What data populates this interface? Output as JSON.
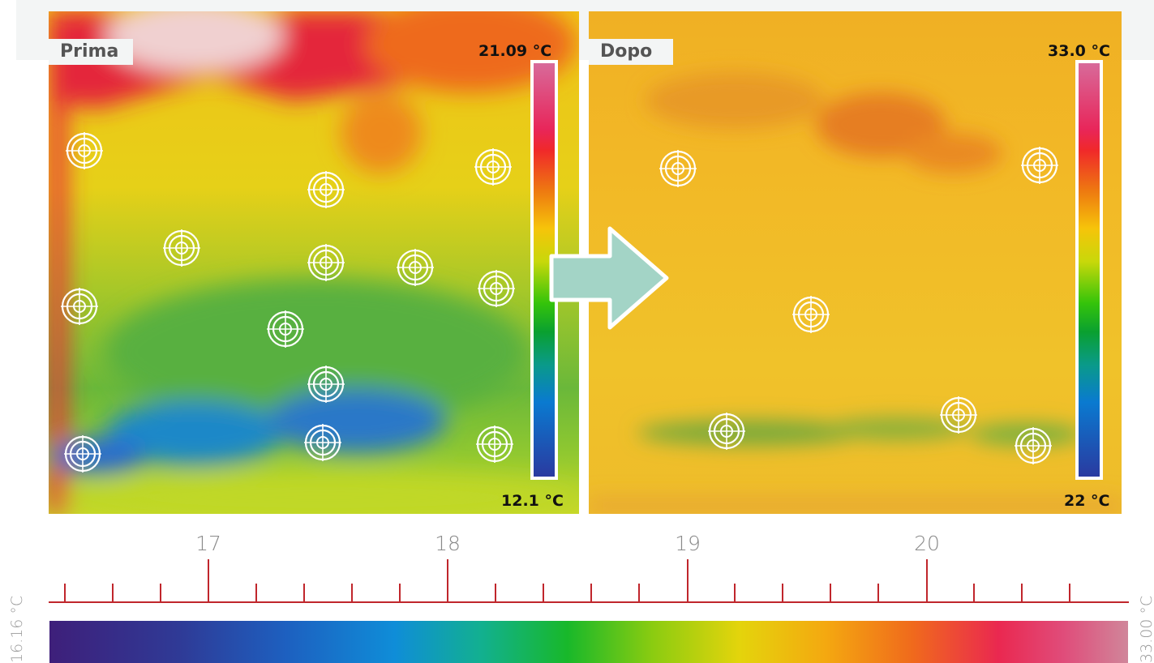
{
  "before": {
    "label": "Prima",
    "scale_max": "21.09 °C",
    "scale_min": "12.1 °C"
  },
  "after": {
    "label": "Dopo",
    "scale_max": "33.0 °C",
    "scale_min": "22 °C"
  },
  "axis": {
    "ticks": [
      "17",
      "18",
      "19",
      "20"
    ]
  },
  "legend": {
    "min_label": "16.16 °C",
    "max_label": "33.00 °C"
  },
  "icons": [
    "crosshair-target-icon",
    "arrow-right-icon"
  ],
  "colors": {
    "axis": "#c0262c",
    "arrow_fill": "#a3d4c6",
    "label_background": "#f3f5f5"
  }
}
